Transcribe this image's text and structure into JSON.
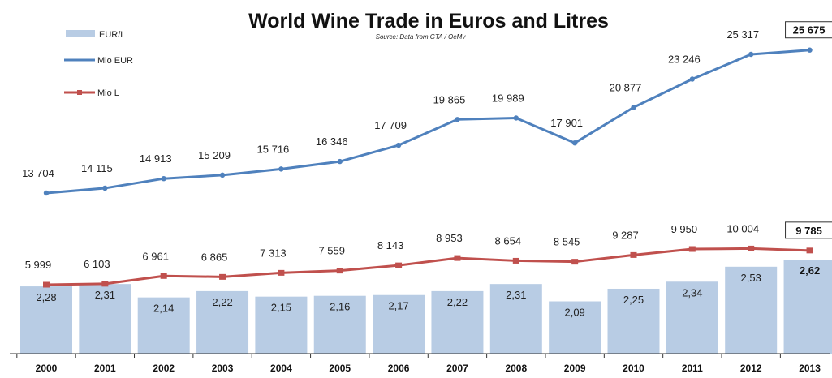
{
  "chart_data": {
    "type": "bar+line",
    "title": "World Wine Trade in Euros and Litres",
    "subtitle": "Source: Data from GTA / OeMv",
    "categories": [
      "2000",
      "2001",
      "2002",
      "2003",
      "2004",
      "2005",
      "2006",
      "2007",
      "2008",
      "2009",
      "2010",
      "2011",
      "2012",
      "2013"
    ],
    "legend": {
      "placement": "top-left",
      "entries": [
        "EUR/L",
        "Mio EUR",
        "Mio L"
      ]
    },
    "series": [
      {
        "name": "EUR/L",
        "kind": "bar",
        "color": "#b8cce4",
        "values": [
          2.28,
          2.31,
          2.14,
          2.22,
          2.15,
          2.16,
          2.17,
          2.22,
          2.31,
          2.09,
          2.25,
          2.34,
          2.53,
          2.62
        ],
        "labels": [
          "2,28",
          "2,31",
          "2,14",
          "2,22",
          "2,15",
          "2,16",
          "2,17",
          "2,22",
          "2,31",
          "2,09",
          "2,25",
          "2,34",
          "2,53",
          "2,62"
        ]
      },
      {
        "name": "Mio EUR",
        "kind": "line",
        "color": "#4f81bd",
        "values": [
          13704,
          14115,
          14913,
          15209,
          15716,
          16346,
          17709,
          19865,
          19989,
          17901,
          20877,
          23246,
          25317,
          25675
        ],
        "labels": [
          "13 704",
          "14 115",
          "14 913",
          "15 209",
          "15 716",
          "16 346",
          "17 709",
          "19 865",
          "19 989",
          "17 901",
          "20 877",
          "23 246",
          "25 317",
          "25 675"
        ]
      },
      {
        "name": "Mio L",
        "kind": "line",
        "color": "#c0504d",
        "values": [
          5999,
          6103,
          6961,
          6865,
          7313,
          7559,
          8143,
          8953,
          8654,
          8545,
          9287,
          9950,
          10004,
          9785
        ],
        "labels": [
          "5 999",
          "6 103",
          "6 961",
          "6 865",
          "7 313",
          "7 559",
          "8 143",
          "8 953",
          "8 654",
          "8 545",
          "9 287",
          "9 950",
          "10 004",
          "9 785"
        ]
      }
    ],
    "highlighted_last_label": true,
    "grid": false
  }
}
